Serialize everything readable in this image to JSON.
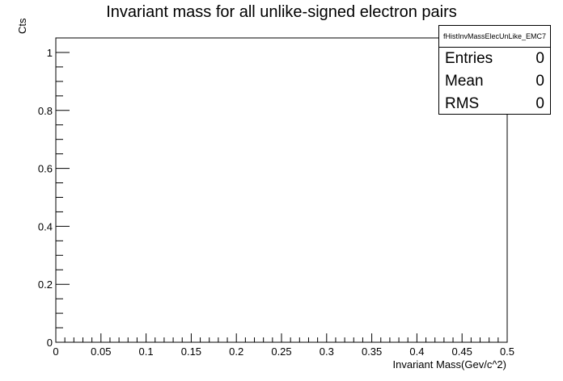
{
  "chart_data": {
    "type": "histogram",
    "title": "Invariant mass for all unlike-signed electron pairs",
    "xlabel": "Invariant Mass(Gev/c^2)",
    "ylabel": "Cts",
    "xlim": [
      0,
      0.5
    ],
    "ylim": [
      0,
      1.05
    ],
    "x_ticks": [
      "0",
      "0.05",
      "0.1",
      "0.15",
      "0.2",
      "0.25",
      "0.3",
      "0.35",
      "0.4",
      "0.45",
      "0.5"
    ],
    "y_ticks": [
      "0",
      "0.2",
      "0.4",
      "0.6",
      "0.8",
      "1"
    ],
    "series": [],
    "stats": {
      "name": "fHistInvMassElecUnLike_EMC7",
      "entries_label": "Entries",
      "entries": "0",
      "mean_label": "Mean",
      "mean": "0",
      "rms_label": "RMS",
      "rms": "0"
    }
  }
}
